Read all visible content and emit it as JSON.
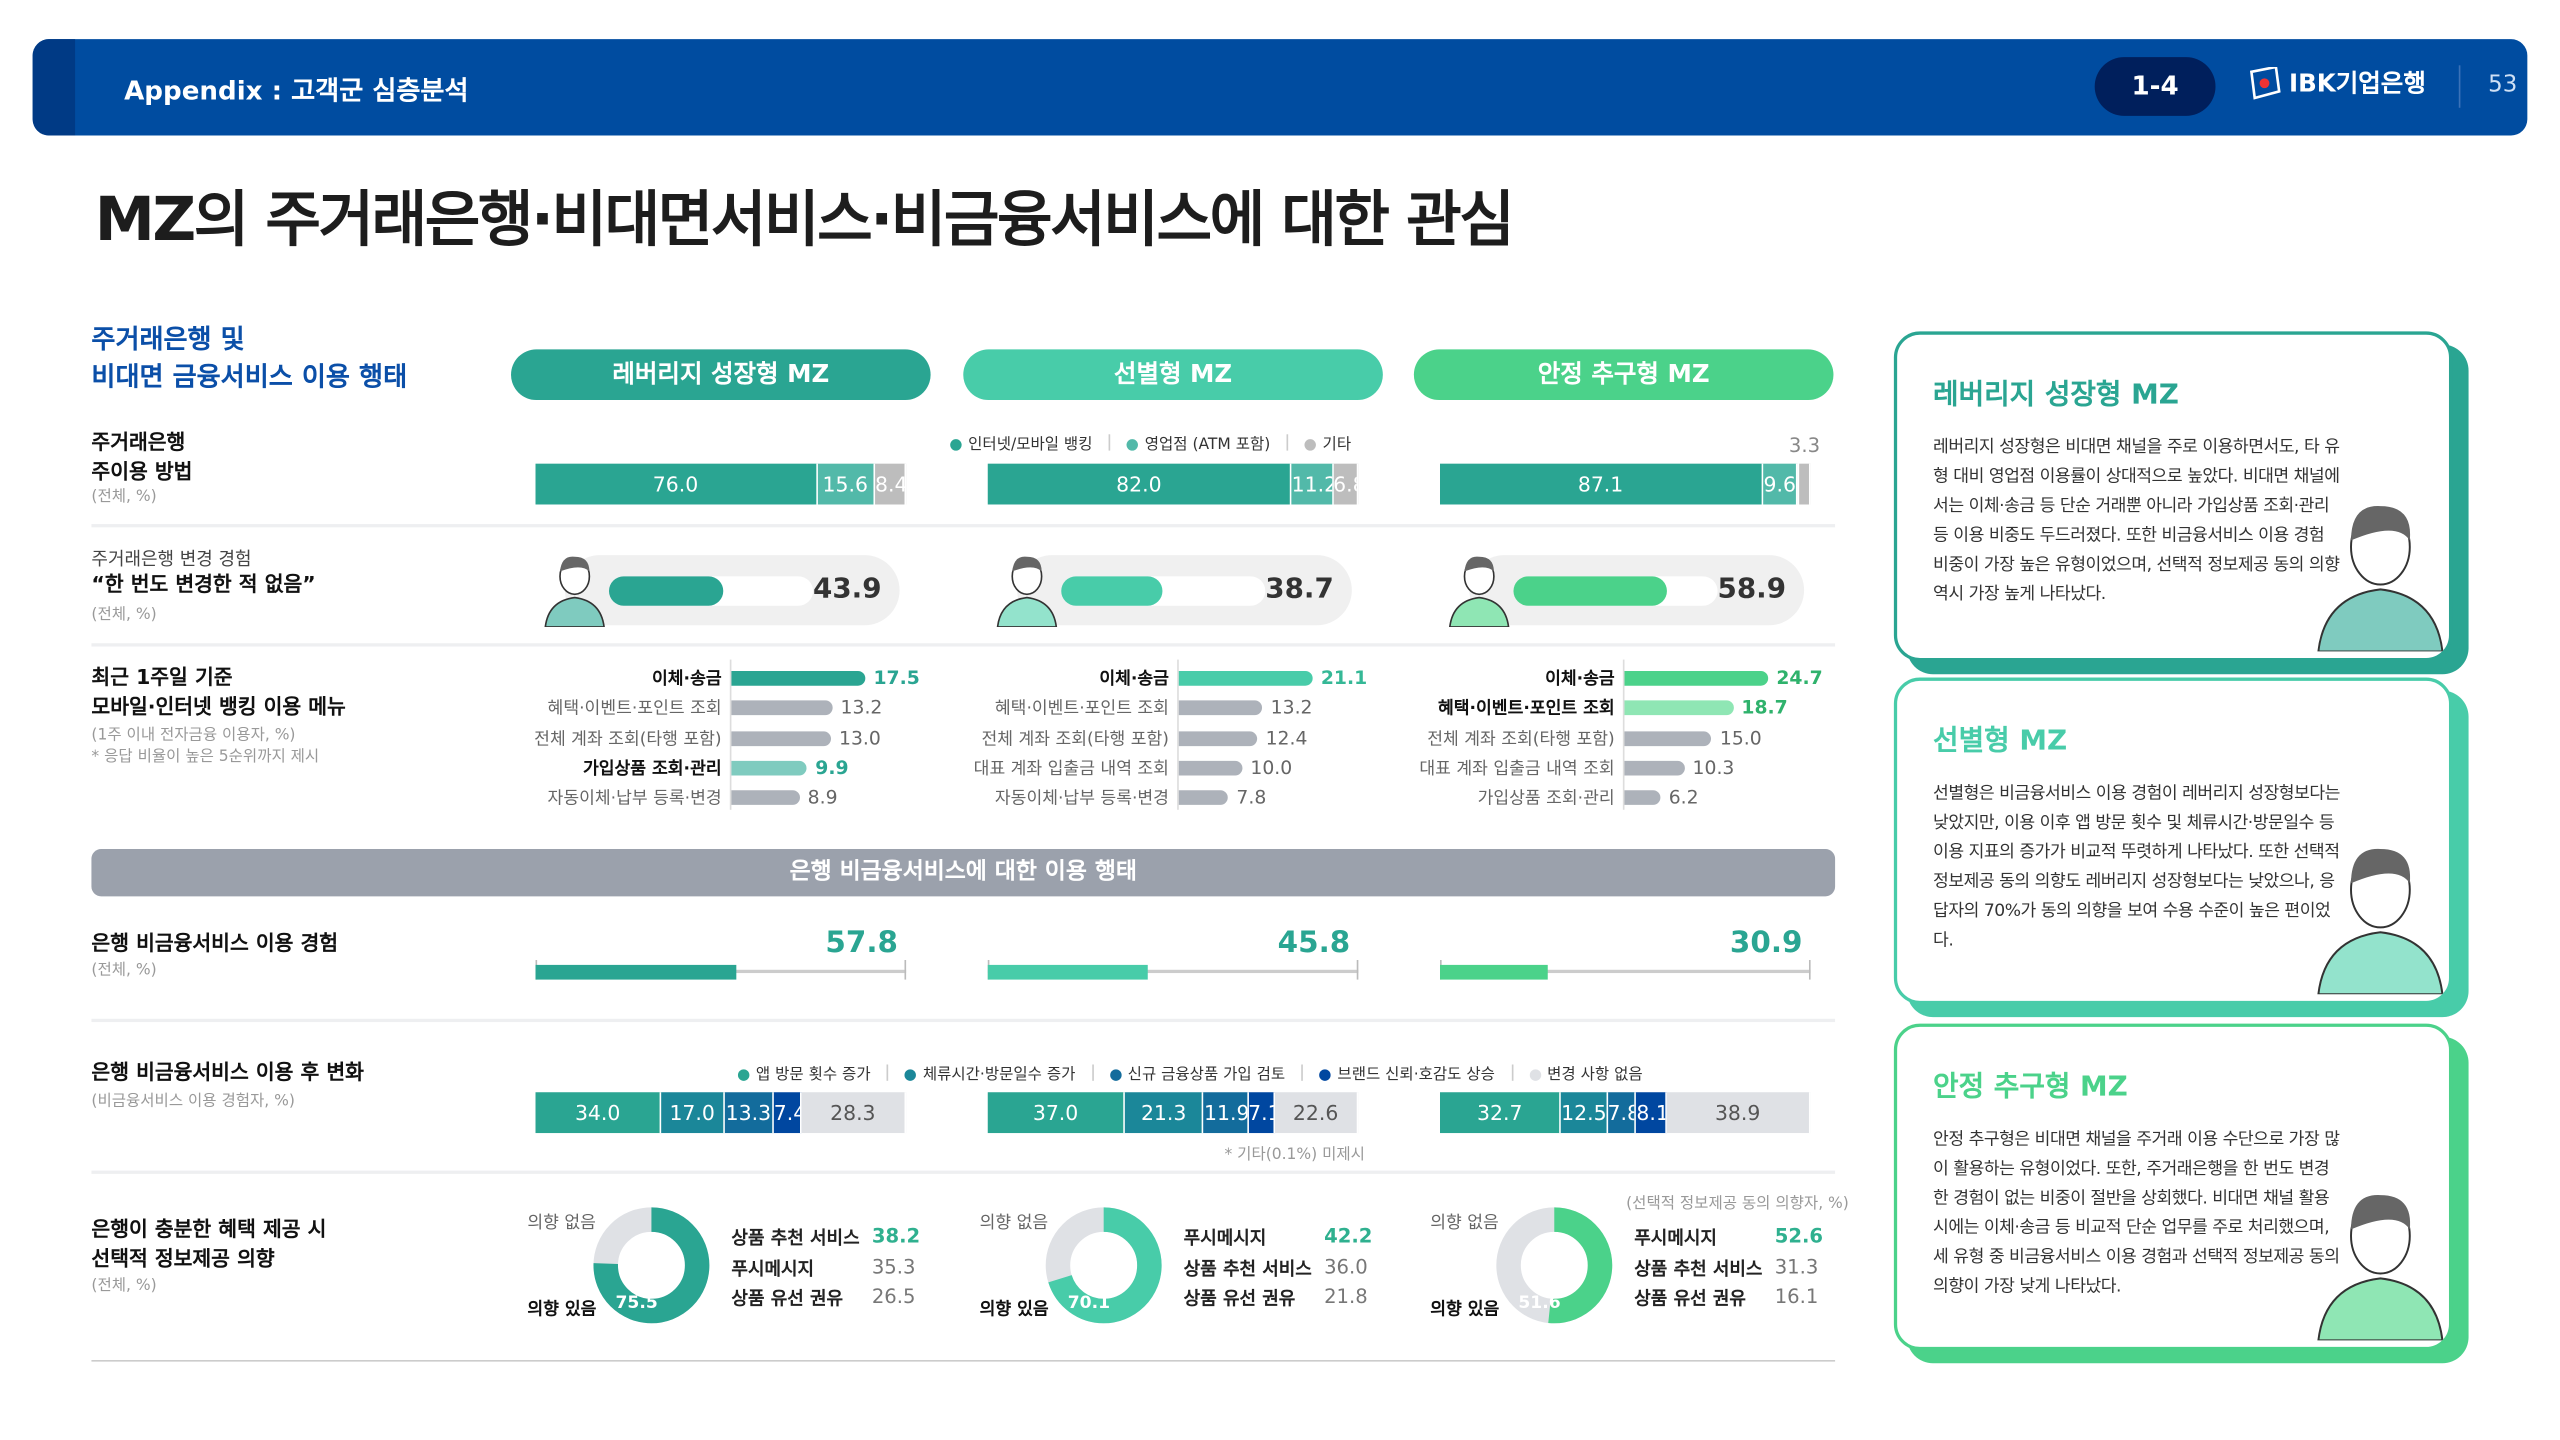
{
  "header": {
    "title": "Appendix : 고객군 심층분석",
    "badge": "1-4",
    "logo": "IBK기업은행",
    "page": "53"
  },
  "title": "MZ의 주거래은행·비대면서비스·비금융서비스에 대한 관심",
  "section_title": [
    "주거래은행 및",
    "비대면 금융서비스 이용 행태"
  ],
  "colors": {
    "type1": "#2aa592",
    "type2": "#48cca9",
    "type3": "#4bd28a",
    "header": "#004ca0",
    "band": "#9ba1ac",
    "gray_bar": "#adb2ba"
  },
  "columns": [
    {
      "name": "레버리지 성장형 MZ",
      "color": "#2aa592",
      "light": "#7fcbbf"
    },
    {
      "name": "선별형 MZ",
      "color": "#48cca9",
      "light": "#93e3cc"
    },
    {
      "name": "안정 추구형 MZ",
      "color": "#4bd28a",
      "light": "#8fe6b4"
    }
  ],
  "row1": {
    "label": [
      "주거래은행",
      "주이용 방법"
    ],
    "sub": "(전체, %)",
    "legend": [
      {
        "label": "인터넷/모바일 뱅킹",
        "color": "#2aa592"
      },
      {
        "label": "영업점 (ATM 포함)",
        "color": "#52b9a9"
      },
      {
        "label": "기타",
        "color": "#bdbdbd"
      }
    ],
    "segment_colors": [
      "#2aa592",
      "#52b9a9",
      "#bdbdbd"
    ],
    "values": [
      [
        "76.0",
        "15.6",
        "8.4"
      ],
      [
        "82.0",
        "11.2",
        "6.8"
      ],
      [
        "87.1",
        "9.6",
        "3.3"
      ]
    ]
  },
  "row2": {
    "small": "주거래은행 변경 경험",
    "quote": "“한 번도 변경한 적 없음”",
    "sub": "(전체, %)",
    "values": [
      "43.9",
      "38.7",
      "58.9"
    ]
  },
  "row3": {
    "label": [
      "최근 1주일 기준",
      "모바일·인터넷 뱅킹 이용 메뉴"
    ],
    "sub": "(1주 이내 전자금융 이용자, %)",
    "note": "* 응답 비율이 높은 5순위까지 제시",
    "menus": [
      [
        {
          "label": "이체·송금",
          "value": "17.5",
          "hl": "main"
        },
        {
          "label": "혜택·이벤트·포인트 조회",
          "value": "13.2"
        },
        {
          "label": "전체 계좌 조회(타행 포함)",
          "value": "13.0"
        },
        {
          "label": "가입상품 조회·관리",
          "value": "9.9",
          "hl": "light"
        },
        {
          "label": "자동이체·납부 등록·변경",
          "value": "8.9"
        }
      ],
      [
        {
          "label": "이체·송금",
          "value": "21.1",
          "hl": "main"
        },
        {
          "label": "혜택·이벤트·포인트 조회",
          "value": "13.2"
        },
        {
          "label": "전체 계좌 조회(타행 포함)",
          "value": "12.4"
        },
        {
          "label": "대표 계좌 입출금 내역 조회",
          "value": "10.0"
        },
        {
          "label": "자동이체·납부 등록·변경",
          "value": "7.8"
        }
      ],
      [
        {
          "label": "이체·송금",
          "value": "24.7",
          "hl": "main"
        },
        {
          "label": "혜택·이벤트·포인트 조회",
          "value": "18.7",
          "hl": "light"
        },
        {
          "label": "전체 계좌 조회(타행 포함)",
          "value": "15.0"
        },
        {
          "label": "대표 계좌 입출금 내역 조회",
          "value": "10.3"
        },
        {
          "label": "가입상품 조회·관리",
          "value": "6.2"
        }
      ]
    ]
  },
  "band_title": "은행 비금융서비스에 대한 이용 행태",
  "row4": {
    "label": "은행 비금융서비스 이용 경험",
    "sub": "(전체, %)",
    "values": [
      "57.8",
      "45.8",
      "30.9"
    ]
  },
  "row5": {
    "label": "은행 비금융서비스 이용 후 변화",
    "sub": "(비금융서비스 이용 경험자, %)",
    "legend": [
      {
        "label": "앱 방문 횟수 증가",
        "color": "#2aa592"
      },
      {
        "label": "체류시간·방문일수 증가",
        "color": "#1b8799"
      },
      {
        "label": "신규 금융상품 가입 검토",
        "color": "#136c9c"
      },
      {
        "label": "브랜드 신뢰·호감도 상승",
        "color": "#0047a0"
      },
      {
        "label": "변경 사항 없음",
        "color": "#dfe1e5"
      }
    ],
    "values": [
      [
        "34.0",
        "17.0",
        "13.3",
        "7.4",
        "28.3"
      ],
      [
        "37.0",
        "21.3",
        "11.9",
        "7.1",
        "22.6"
      ],
      [
        "32.7",
        "12.5",
        "7.8",
        "8.1",
        "38.9"
      ]
    ],
    "note": "* 기타(0.1%) 미제시"
  },
  "row6": {
    "label": [
      "은행이 충분한 혜택 제공 시",
      "선택적 정보제공 의향"
    ],
    "sub": "(전체, %)",
    "note": "(선택적 정보제공 동의 의향자, %)",
    "no_label": "의향 없음",
    "yes_label": "의향 있음",
    "donuts": [
      {
        "yes": "75.5",
        "items": [
          {
            "label": "상품 추천 서비스",
            "value": "38.2"
          },
          {
            "label": "푸시메시지",
            "value": "35.3"
          },
          {
            "label": "상품 유선 권유",
            "value": "26.5"
          }
        ]
      },
      {
        "yes": "70.1",
        "items": [
          {
            "label": "푸시메시지",
            "value": "42.2"
          },
          {
            "label": "상품 추천 서비스",
            "value": "36.0"
          },
          {
            "label": "상품 유선 권유",
            "value": "21.8"
          }
        ]
      },
      {
        "yes": "51.6",
        "items": [
          {
            "label": "푸시메시지",
            "value": "52.6"
          },
          {
            "label": "상품 추천 서비스",
            "value": "31.3"
          },
          {
            "label": "상품 유선 권유",
            "value": "16.1"
          }
        ]
      }
    ]
  },
  "cards": [
    {
      "title": "레버리지 성장형 MZ",
      "text": "레버리지 성장형은 비대면 채널을 주로 이용하면서도, 타 유형 대비 영업점 이용률이 상대적으로 높았다. 비대면 채널에서는 이체·송금 등 단순 거래뿐 아니라 가입상품 조회·관리 등 이용 비중도 두드러졌다. 또한 비금융서비스 이용 경험 비중이 가장 높은 유형이었으며, 선택적 정보제공 동의 의향 역시 가장 높게 나타났다."
    },
    {
      "title": "선별형 MZ",
      "text": "선별형은 비금융서비스 이용 경험이 레버리지 성장형보다는 낮았지만, 이용 이후 앱 방문 횟수 및 체류시간·방문일수 등 이용 지표의 증가가 비교적 뚜렷하게 나타났다. 또한 선택적 정보제공 동의 의향도 레버리지 성장형보다는 낮았으나, 응답자의 70%가 동의 의향을 보여 수용 수준이 높은 편이었다."
    },
    {
      "title": "안정 추구형 MZ",
      "text": "안정 추구형은 비대면 채널을 주거래 이용 수단으로 가장 많이 활용하는 유형이었다. 또한, 주거래은행을 한 번도 변경한 경험이 없는 비중이 절반을 상회했다. 비대면 채널 활용 시에는 이체·송금 등 비교적 단순 업무를 주로 처리했으며, 세 유형 중 비금융서비스 이용 경험과 선택적 정보제공 동의 의향이 가장 낮게 나타났다."
    }
  ]
}
